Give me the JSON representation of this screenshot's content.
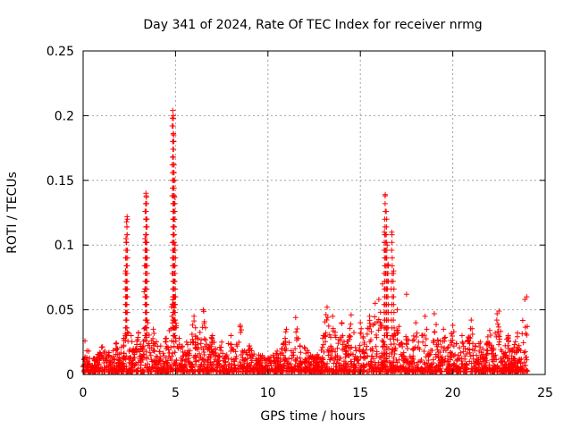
{
  "chart_data": {
    "type": "scatter",
    "title": "Day 341 of 2024, Rate Of TEC Index for receiver nrmg",
    "xlabel": "GPS time / hours",
    "ylabel": "ROTI / TECUs",
    "xlim": [
      0,
      25
    ],
    "ylim": [
      0,
      0.25
    ],
    "xticks": [
      0,
      5,
      10,
      15,
      20,
      25
    ],
    "yticks": [
      0,
      0.05,
      0.1,
      0.15,
      0.2,
      0.25
    ],
    "xtick_labels": [
      "0",
      "5",
      "10",
      "15",
      "20",
      "25"
    ],
    "ytick_labels": [
      "0",
      "0.05",
      "0.1",
      "0.15",
      "0.2",
      "0.25"
    ],
    "grid": true,
    "marker": "+",
    "color": "#ff0000",
    "series": [
      {
        "name": "ROTI",
        "x": [
          0.1,
          0.3,
          0.6,
          1.0,
          1.4,
          1.8,
          2.2,
          2.3,
          2.32,
          2.35,
          2.38,
          2.4,
          2.6,
          3.0,
          3.3,
          3.35,
          3.38,
          3.4,
          3.42,
          3.45,
          3.5,
          3.8,
          4.2,
          4.5,
          4.85,
          4.88,
          4.9,
          4.92,
          4.95,
          4.97,
          5.0,
          5.2,
          5.6,
          6.0,
          6.5,
          7.0,
          7.5,
          8.0,
          8.5,
          9.0,
          9.5,
          10.0,
          10.5,
          11.0,
          11.5,
          12.0,
          12.5,
          13.0,
          13.2,
          13.5,
          14.0,
          14.5,
          15.0,
          15.5,
          15.8,
          16.0,
          16.2,
          16.3,
          16.35,
          16.4,
          16.45,
          16.5,
          16.7,
          16.8,
          17.0,
          17.5,
          18.0,
          18.5,
          19.0,
          19.5,
          20.0,
          20.5,
          21.0,
          21.5,
          22.0,
          22.4,
          22.5,
          23.0,
          23.5,
          23.9,
          24.0
        ],
        "y": [
          0.026,
          0.018,
          0.012,
          0.021,
          0.017,
          0.024,
          0.028,
          0.08,
          0.105,
          0.118,
          0.122,
          0.06,
          0.03,
          0.032,
          0.064,
          0.105,
          0.132,
          0.14,
          0.137,
          0.12,
          0.04,
          0.035,
          0.022,
          0.028,
          0.204,
          0.2,
          0.185,
          0.162,
          0.137,
          0.1,
          0.06,
          0.028,
          0.025,
          0.045,
          0.05,
          0.03,
          0.025,
          0.03,
          0.038,
          0.022,
          0.015,
          0.012,
          0.018,
          0.035,
          0.044,
          0.02,
          0.012,
          0.03,
          0.052,
          0.045,
          0.04,
          0.046,
          0.04,
          0.045,
          0.055,
          0.058,
          0.07,
          0.11,
          0.139,
          0.126,
          0.1,
          0.085,
          0.11,
          0.08,
          0.05,
          0.062,
          0.04,
          0.045,
          0.047,
          0.035,
          0.038,
          0.03,
          0.042,
          0.025,
          0.034,
          0.047,
          0.049,
          0.03,
          0.032,
          0.058,
          0.06
        ]
      }
    ]
  }
}
